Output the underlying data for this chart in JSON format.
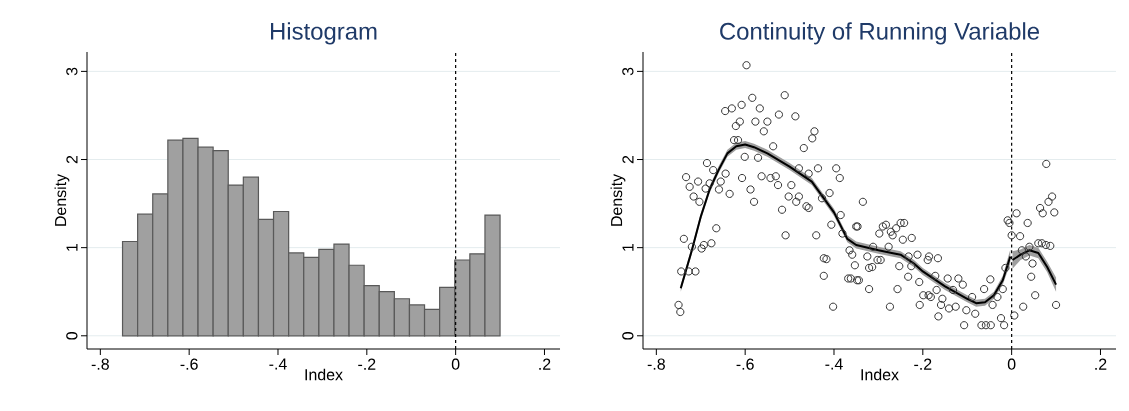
{
  "chart_data": [
    {
      "type": "histogram",
      "title": "Histogram",
      "xlabel": "Index",
      "ylabel": "Density",
      "color": "#a0a0a0",
      "grid": "y",
      "bins": [
        -0.75,
        -0.716,
        -0.682,
        -0.648,
        -0.614,
        -0.58,
        -0.546,
        -0.512,
        -0.478,
        -0.444,
        -0.41,
        -0.376,
        -0.342,
        -0.308,
        -0.274,
        -0.24,
        -0.206,
        -0.172,
        -0.138,
        -0.104,
        -0.07,
        -0.036,
        -0.002,
        0.032,
        0.066,
        0.1
      ],
      "values": [
        1.07,
        1.38,
        1.61,
        2.22,
        2.24,
        2.14,
        2.1,
        1.71,
        1.8,
        1.32,
        1.41,
        0.94,
        0.89,
        0.98,
        1.04,
        0.8,
        0.57,
        0.5,
        0.42,
        0.35,
        0.3,
        0.55,
        0.86,
        0.93,
        1.37
      ],
      "xlim": [
        -0.83,
        0.235
      ],
      "ylim": [
        -0.15,
        3.22
      ],
      "xticks": [
        {
          "value": -0.8,
          "label": "-.8"
        },
        {
          "value": -0.6,
          "label": "-.6"
        },
        {
          "value": -0.4,
          "label": "-.4"
        },
        {
          "value": -0.2,
          "label": "-.2"
        },
        {
          "value": 0,
          "label": "0"
        },
        {
          "value": 0.2,
          "label": ".2"
        }
      ],
      "yticks": [
        0,
        1,
        2,
        3
      ],
      "ref_lines": [
        {
          "axis": "x",
          "value": 0,
          "color": "#000000",
          "line_style": "dashed"
        }
      ]
    },
    {
      "type": "scatter",
      "title": "Continuity of Running Variable",
      "xlabel": "Index",
      "ylabel": "Density",
      "grid": "y",
      "xlim": [
        -0.83,
        0.235
      ],
      "ylim": [
        -0.15,
        3.22
      ],
      "xticks": [
        {
          "value": -0.8,
          "label": "-.8"
        },
        {
          "value": -0.6,
          "label": "-.6"
        },
        {
          "value": -0.4,
          "label": "-.4"
        },
        {
          "value": -0.2,
          "label": "-.2"
        },
        {
          "value": 0,
          "label": "0"
        },
        {
          "value": 0.2,
          "label": ".2"
        }
      ],
      "yticks": [
        0,
        1,
        2,
        3
      ],
      "ref_lines": [
        {
          "axis": "x",
          "value": 0,
          "color": "#000000",
          "line_style": "dashed"
        }
      ],
      "series": [
        {
          "type": "scatter",
          "marker": "circle",
          "color": "#333333",
          "x": [
            -0.597,
            -0.75,
            -0.746,
            -0.744,
            -0.727,
            -0.712,
            -0.738,
            -0.733,
            -0.725,
            -0.716,
            -0.706,
            -0.703,
            -0.72,
            -0.698,
            -0.693,
            -0.676,
            -0.686,
            -0.689,
            -0.68,
            -0.672,
            -0.665,
            -0.659,
            -0.655,
            -0.644,
            -0.635,
            -0.645,
            -0.63,
            -0.608,
            -0.621,
            -0.612,
            -0.625,
            -0.616,
            -0.607,
            -0.601,
            -0.588,
            -0.58,
            -0.584,
            -0.567,
            -0.577,
            -0.558,
            -0.55,
            -0.571,
            -0.563,
            -0.537,
            -0.543,
            -0.531,
            -0.526,
            -0.524,
            -0.511,
            -0.517,
            -0.509,
            -0.487,
            -0.496,
            -0.502,
            -0.479,
            -0.485,
            -0.479,
            -0.468,
            -0.462,
            -0.457,
            -0.449,
            -0.444,
            -0.457,
            -0.436,
            -0.44,
            -0.427,
            -0.423,
            -0.417,
            -0.423,
            -0.41,
            -0.406,
            -0.402,
            -0.395,
            -0.387,
            -0.385,
            -0.381,
            -0.368,
            -0.365,
            -0.359,
            -0.353,
            -0.35,
            -0.348,
            -0.335,
            -0.347,
            -0.362,
            -0.325,
            -0.321,
            -0.314,
            -0.312,
            -0.302,
            -0.295,
            -0.344,
            -0.321,
            -0.298,
            -0.29,
            -0.283,
            -0.277,
            -0.272,
            -0.268,
            -0.26,
            -0.25,
            -0.242,
            -0.245,
            -0.225,
            -0.274,
            -0.257,
            -0.253,
            -0.232,
            -0.226,
            -0.233,
            -0.212,
            -0.208,
            -0.207,
            -0.199,
            -0.189,
            -0.186,
            -0.166,
            -0.172,
            -0.169,
            -0.165,
            -0.187,
            -0.182,
            -0.159,
            -0.156,
            -0.144,
            -0.141,
            -0.132,
            -0.126,
            -0.12,
            -0.11,
            -0.107,
            -0.102,
            -0.089,
            -0.082,
            -0.068,
            -0.058,
            -0.047,
            -0.062,
            -0.048,
            -0.043,
            -0.032,
            -0.024,
            -0.017,
            -0.02,
            -0.014,
            -0.009,
            -0.005,
            0.0,
            0.006,
            0.011,
            0.019,
            0.026,
            0.036,
            0.023,
            0.032,
            0.04,
            0.047,
            0.044,
            0.053,
            0.06,
            0.068,
            0.077,
            0.087,
            0.064,
            0.07,
            0.083,
            0.091,
            0.096,
            0.1,
            0.078
          ],
          "values": [
            3.07,
            0.35,
            0.27,
            0.73,
            0.73,
            0.73,
            1.1,
            1.8,
            1.69,
            1.58,
            1.75,
            1.52,
            1.01,
            0.99,
            1.03,
            1.05,
            1.96,
            1.67,
            1.73,
            1.88,
            1.22,
            1.66,
            1.75,
            1.84,
            1.61,
            2.55,
            2.58,
            2.62,
            2.38,
            2.43,
            2.22,
            2.22,
            1.79,
            2.03,
            1.66,
            1.52,
            2.7,
            2.58,
            2.43,
            2.32,
            2.43,
            2.02,
            1.81,
            2.15,
            1.79,
            1.81,
            1.71,
            2.51,
            2.73,
            1.43,
            1.14,
            2.49,
            1.71,
            1.58,
            1.9,
            1.52,
            1.58,
            2.13,
            1.47,
            1.45,
            2.24,
            2.32,
            1.84,
            1.9,
            1.14,
            1.56,
            0.88,
            0.87,
            0.68,
            1.62,
            1.26,
            0.33,
            1.9,
            1.79,
            1.37,
            1.16,
            0.65,
            0.97,
            0.92,
            0.8,
            1.24,
            0.63,
            1.52,
            1.24,
            0.65,
            0.9,
            0.77,
            0.78,
            1.01,
            0.86,
            0.86,
            0.63,
            0.53,
            1.16,
            1.24,
            1.26,
            1.01,
            1.18,
            1.14,
            1.22,
            1.28,
            1.28,
            1.09,
            1.11,
            0.33,
            0.53,
            0.79,
            0.9,
            0.79,
            0.67,
            0.92,
            0.61,
            0.35,
            0.46,
            0.86,
            0.9,
            0.88,
            0.68,
            0.52,
            0.22,
            0.46,
            0.44,
            0.35,
            0.42,
            0.65,
            0.31,
            0.52,
            0.33,
            0.65,
            0.58,
            0.12,
            0.29,
            0.44,
            0.25,
            0.12,
            0.12,
            0.12,
            0.53,
            0.64,
            0.35,
            0.44,
            0.2,
            0.12,
            0.53,
            0.77,
            1.31,
            1.28,
            1.14,
            0.23,
            1.39,
            1.13,
            0.33,
            1.28,
            0.97,
            0.9,
            1.01,
            0.82,
            0.67,
            0.46,
            1.05,
            1.05,
            1.03,
            1.02,
            1.45,
            1.39,
            1.52,
            1.58,
            1.4,
            0.35,
            1.95
          ]
        },
        {
          "type": "line",
          "color": "#000000",
          "x": [
            -0.745,
            -0.72,
            -0.7,
            -0.68,
            -0.66,
            -0.64,
            -0.62,
            -0.6,
            -0.58,
            -0.55,
            -0.5,
            -0.45,
            -0.4,
            -0.37,
            -0.35,
            -0.3,
            -0.27,
            -0.25,
            -0.22,
            -0.2,
            -0.15,
            -0.1,
            -0.08,
            -0.06,
            -0.04,
            -0.02,
            -0.003
          ],
          "values": [
            0.54,
            0.97,
            1.35,
            1.66,
            1.88,
            2.07,
            2.15,
            2.17,
            2.14,
            2.07,
            1.92,
            1.75,
            1.4,
            1.1,
            1.03,
            0.97,
            0.94,
            0.92,
            0.82,
            0.73,
            0.56,
            0.42,
            0.37,
            0.38,
            0.46,
            0.63,
            0.9
          ],
          "lower": [
            0.5,
            0.93,
            1.31,
            1.62,
            1.84,
            2.03,
            2.11,
            2.13,
            2.1,
            2.03,
            1.88,
            1.71,
            1.36,
            1.06,
            0.99,
            0.93,
            0.9,
            0.88,
            0.78,
            0.69,
            0.52,
            0.38,
            0.33,
            0.34,
            0.42,
            0.58,
            0.82
          ],
          "upper": [
            0.58,
            1.01,
            1.39,
            1.7,
            1.92,
            2.11,
            2.19,
            2.21,
            2.18,
            2.11,
            1.96,
            1.79,
            1.44,
            1.14,
            1.07,
            1.01,
            0.98,
            0.96,
            0.86,
            0.77,
            0.6,
            0.46,
            0.41,
            0.42,
            0.5,
            0.68,
            0.98
          ]
        },
        {
          "type": "line",
          "color": "#000000",
          "x": [
            0.002,
            0.02,
            0.04,
            0.06,
            0.08,
            0.1
          ],
          "values": [
            0.86,
            0.92,
            0.97,
            0.94,
            0.78,
            0.58
          ],
          "lower": [
            0.76,
            0.86,
            0.91,
            0.88,
            0.72,
            0.5
          ],
          "upper": [
            0.96,
            0.98,
            1.03,
            1.0,
            0.84,
            0.66
          ]
        }
      ]
    }
  ]
}
